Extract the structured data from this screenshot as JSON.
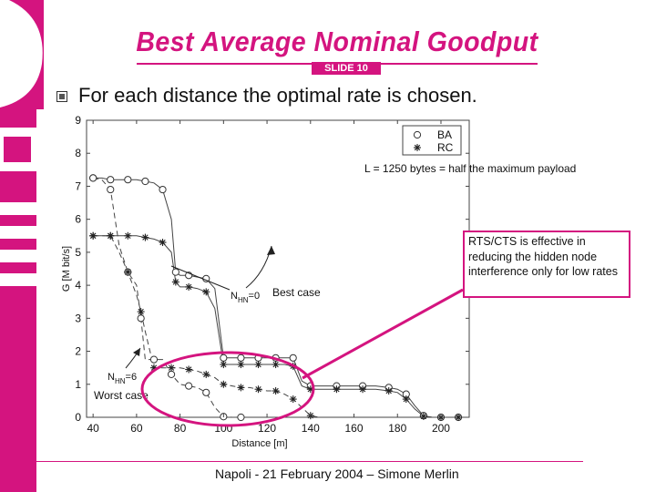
{
  "slide": {
    "title": "Best Average Nominal Goodput",
    "slide_tag": "SLIDE 10",
    "bullet": "For each distance the optimal rate is chosen.",
    "footer": "Napoli - 21 February 2004 – Simone Merlin",
    "note": "RTS/CTS is effective in reducing the hidden node interference only for low rates",
    "colors": {
      "accent": "#d4147f",
      "deco": "#d4147f",
      "plot_line": "#444444"
    }
  },
  "chart_data": {
    "type": "line",
    "xlabel": "Distance [m]",
    "ylabel": "G [M bit/s]",
    "xlim": [
      37,
      213
    ],
    "ylim": [
      0,
      9
    ],
    "xticks": [
      40,
      60,
      80,
      100,
      120,
      140,
      160,
      180,
      200
    ],
    "yticks": [
      0,
      1,
      2,
      3,
      4,
      5,
      6,
      7,
      8,
      9
    ],
    "grid": false,
    "legend": {
      "placement": "top-right",
      "entries": [
        "BA",
        "RC"
      ]
    },
    "annotations": {
      "payload": "L = 1250 bytes = half the maximum payload",
      "best_case": "Best case",
      "worst_case": "Worst case",
      "nhn0_main": "N",
      "nhn0_sub": "HN",
      "nhn0_val": "=0",
      "nhn6_main": "N",
      "nhn6_sub": "HN",
      "nhn6_val": "=6"
    },
    "series": [
      {
        "marker": "circle",
        "dash": "solid",
        "x": [
          40,
          44,
          48,
          52,
          56,
          60,
          64,
          68,
          72,
          76,
          78,
          80,
          84,
          88,
          92,
          96,
          100,
          104,
          108,
          112,
          116,
          120,
          124,
          128,
          132,
          136,
          140,
          146,
          152,
          158,
          164,
          170,
          176,
          180,
          184,
          188,
          192,
          196,
          200,
          204,
          208
        ],
        "y": [
          7.25,
          7.25,
          7.2,
          7.2,
          7.2,
          7.2,
          7.15,
          7.1,
          6.9,
          6.0,
          4.4,
          4.3,
          4.3,
          4.25,
          4.2,
          3.9,
          1.8,
          1.8,
          1.8,
          1.8,
          1.8,
          1.8,
          1.8,
          1.8,
          1.8,
          1.1,
          0.95,
          0.95,
          0.95,
          0.95,
          0.95,
          0.95,
          0.9,
          0.85,
          0.7,
          0.35,
          0.05,
          0.0,
          0.0,
          0.0,
          0.0
        ]
      },
      {
        "marker": "star",
        "dash": "solid",
        "x": [
          40,
          44,
          48,
          52,
          56,
          60,
          64,
          68,
          72,
          76,
          78,
          80,
          84,
          88,
          92,
          96,
          100,
          104,
          108,
          112,
          116,
          120,
          124,
          128,
          132,
          136,
          140,
          146,
          152,
          158,
          164,
          170,
          176,
          180,
          184,
          188,
          192,
          196,
          200,
          204,
          208
        ],
        "y": [
          5.5,
          5.5,
          5.5,
          5.5,
          5.5,
          5.5,
          5.45,
          5.4,
          5.3,
          5.0,
          4.1,
          3.95,
          3.95,
          3.9,
          3.8,
          3.3,
          1.6,
          1.6,
          1.6,
          1.6,
          1.6,
          1.6,
          1.6,
          1.6,
          1.55,
          0.95,
          0.85,
          0.85,
          0.85,
          0.85,
          0.85,
          0.85,
          0.8,
          0.75,
          0.55,
          0.25,
          0.03,
          0.0,
          0.0,
          0.0,
          0.0
        ]
      },
      {
        "marker": "circle",
        "dash": "dashed",
        "x": [
          40,
          44,
          48,
          52,
          56,
          60,
          62,
          64,
          68,
          72,
          76,
          80,
          84,
          88,
          92,
          96,
          100,
          104,
          108
        ],
        "y": [
          7.25,
          7.2,
          6.9,
          5.2,
          4.4,
          4.0,
          3.0,
          1.75,
          1.75,
          1.75,
          1.3,
          1.0,
          0.95,
          0.9,
          0.75,
          0.3,
          0.02,
          0.0,
          0.0
        ]
      },
      {
        "marker": "star",
        "dash": "dashed",
        "x": [
          40,
          44,
          48,
          52,
          56,
          60,
          62,
          64,
          68,
          72,
          76,
          80,
          84,
          88,
          92,
          96,
          100,
          104,
          108,
          112,
          116,
          120,
          124,
          128,
          132,
          136,
          140,
          144
        ],
        "y": [
          5.5,
          5.5,
          5.5,
          5.0,
          4.4,
          3.7,
          3.2,
          2.6,
          1.5,
          1.5,
          1.5,
          1.5,
          1.45,
          1.4,
          1.3,
          1.2,
          1.0,
          0.95,
          0.9,
          0.9,
          0.85,
          0.8,
          0.8,
          0.7,
          0.55,
          0.3,
          0.05,
          0.0
        ]
      }
    ]
  }
}
